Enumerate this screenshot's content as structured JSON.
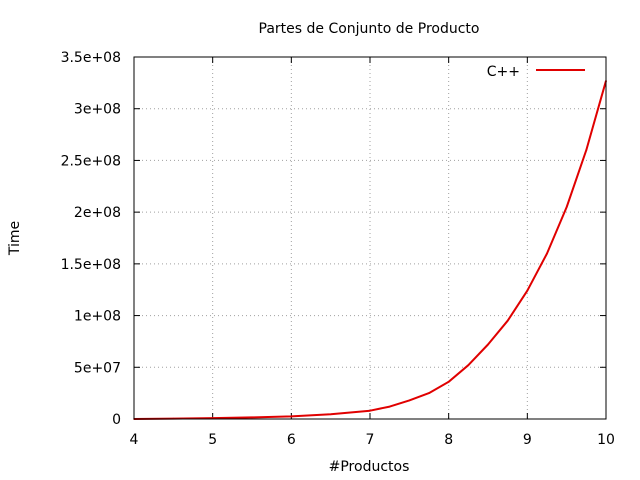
{
  "chart_data": {
    "type": "line",
    "title": "Partes de Conjunto de Producto",
    "xlabel": "#Productos",
    "ylabel": "Time",
    "xlim": [
      4,
      10
    ],
    "ylim": [
      0,
      350000000
    ],
    "x_ticks": [
      4,
      5,
      6,
      7,
      8,
      9,
      10
    ],
    "x_tick_labels": [
      "4",
      "5",
      "6",
      "7",
      "8",
      "9",
      "10"
    ],
    "y_ticks": [
      0,
      50000000,
      100000000,
      150000000,
      200000000,
      250000000,
      300000000,
      350000000
    ],
    "y_tick_labels": [
      "0",
      "5e+07",
      "1e+08",
      "1.5e+08",
      "2e+08",
      "2.5e+08",
      "3e+08",
      "3.5e+08"
    ],
    "grid": true,
    "legend_position": "top-right",
    "series": [
      {
        "name": "C++",
        "color": "#e00000",
        "x": [
          4.0,
          4.5,
          5.0,
          5.5,
          6.0,
          6.5,
          7.0,
          7.25,
          7.5,
          7.75,
          8.0,
          8.25,
          8.5,
          8.75,
          9.0,
          9.25,
          9.5,
          9.75,
          10.0
        ],
        "y": [
          0,
          400000,
          900000,
          1500000,
          2500000,
          4500000,
          8000000,
          12000000,
          18000000,
          25000000,
          36000000,
          52000000,
          72000000,
          95000000,
          124000000,
          160000000,
          205000000,
          260000000,
          327000000
        ]
      }
    ]
  }
}
